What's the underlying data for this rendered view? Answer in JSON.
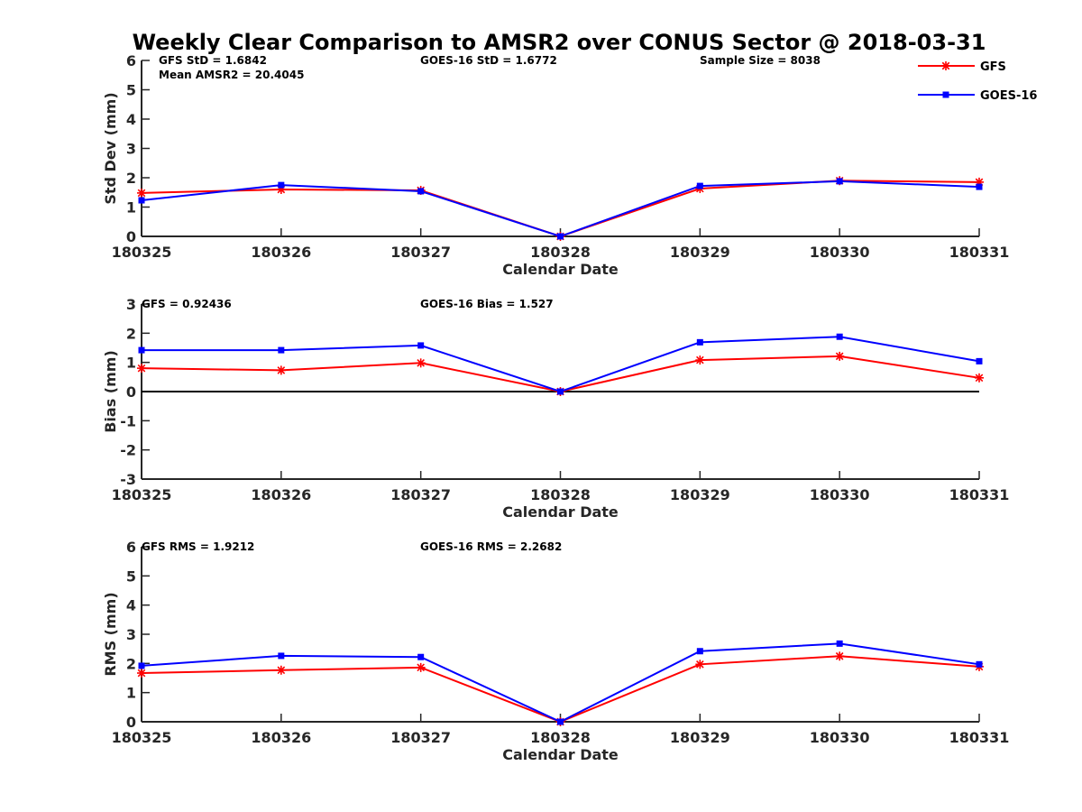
{
  "chart_data": {
    "title": "Weekly Clear Comparison to AMSR2 over CONUS Sector @ 2018-03-31",
    "legend": {
      "placement": "top-right",
      "entries": [
        {
          "name": "GFS",
          "color": "#ff0000",
          "marker": "asterisk"
        },
        {
          "name": "GOES-16",
          "color": "#0000ff",
          "marker": "square"
        }
      ]
    },
    "panels": [
      {
        "type": "line",
        "ylabel": "Std Dev (mm)",
        "xlabel": "Calendar Date",
        "categories": [
          "180325",
          "180326",
          "180327",
          "180328",
          "180329",
          "180330",
          "180331"
        ],
        "ylim": [
          0,
          6
        ],
        "yticks": [
          "0",
          "1",
          "2",
          "3",
          "4",
          "5",
          "6"
        ],
        "zero_line": false,
        "annotations": [
          "GFS StD = 1.6842",
          "Mean AMSR2 = 20.4045",
          "GOES-16 StD = 1.6772",
          "Sample Size = 8038"
        ],
        "series": [
          {
            "name": "GFS",
            "values": [
              1.48,
              1.6,
              1.57,
              0.0,
              1.63,
              1.9,
              1.85
            ]
          },
          {
            "name": "GOES-16",
            "values": [
              1.23,
              1.75,
              1.54,
              0.0,
              1.72,
              1.88,
              1.69
            ]
          }
        ]
      },
      {
        "type": "line",
        "ylabel": "Bias (mm)",
        "xlabel": "Calendar Date",
        "categories": [
          "180325",
          "180326",
          "180327",
          "180328",
          "180329",
          "180330",
          "180331"
        ],
        "ylim": [
          -3,
          3
        ],
        "yticks": [
          "-3",
          "-2",
          "-1",
          "0",
          "1",
          "2",
          "3"
        ],
        "zero_line": true,
        "annotations": [
          "GFS = 0.92436",
          "GOES-16 Bias  = 1.527"
        ],
        "series": [
          {
            "name": "GFS",
            "values": [
              0.8,
              0.73,
              0.98,
              0.0,
              1.08,
              1.21,
              0.47
            ]
          },
          {
            "name": "GOES-16",
            "values": [
              1.42,
              1.42,
              1.58,
              0.0,
              1.69,
              1.88,
              1.04
            ]
          }
        ]
      },
      {
        "type": "line",
        "ylabel": "RMS (mm)",
        "xlabel": "Calendar Date",
        "categories": [
          "180325",
          "180326",
          "180327",
          "180328",
          "180329",
          "180330",
          "180331"
        ],
        "ylim": [
          0,
          6
        ],
        "yticks": [
          "0",
          "1",
          "2",
          "3",
          "4",
          "5",
          "6"
        ],
        "zero_line": false,
        "annotations": [
          "GFS RMS = 1.9212",
          "GOES-16 RMS = 2.2682"
        ],
        "series": [
          {
            "name": "GFS",
            "values": [
              1.67,
              1.77,
              1.86,
              0.0,
              1.97,
              2.25,
              1.89
            ]
          },
          {
            "name": "GOES-16",
            "values": [
              1.92,
              2.26,
              2.22,
              0.0,
              2.42,
              2.68,
              1.97
            ]
          }
        ]
      }
    ]
  }
}
